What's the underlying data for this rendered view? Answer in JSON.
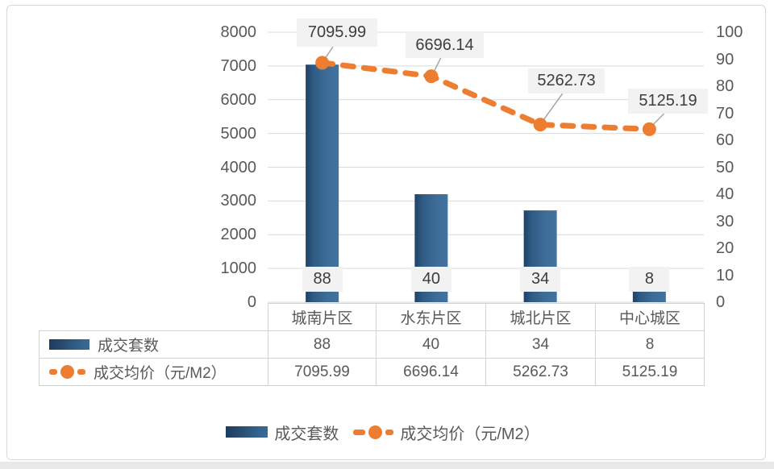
{
  "chart_data": {
    "type": "bar+line combo",
    "title": "",
    "categories": [
      "城南片区",
      "水东片区",
      "城北片区",
      "中心城区"
    ],
    "series": [
      {
        "name": "成交套数",
        "type": "bar",
        "axis": "right",
        "values": [
          88,
          40,
          34,
          8
        ],
        "data_labels": [
          "88",
          "40",
          "34",
          "8"
        ],
        "color": "#3a6b96"
      },
      {
        "name": "成交均价（元/M2）",
        "type": "line",
        "style": "dashed-with-round-markers",
        "axis": "left",
        "values": [
          7095.99,
          6696.14,
          5262.73,
          5125.19
        ],
        "data_labels": [
          "7095.99",
          "6696.14",
          "5262.73",
          "5125.19"
        ],
        "color": "#ed7d31"
      }
    ],
    "left_axis": {
      "min": 0,
      "max": 8000,
      "step": 1000,
      "ticks": [
        "0",
        "1000",
        "2000",
        "3000",
        "4000",
        "5000",
        "6000",
        "7000",
        "8000"
      ]
    },
    "right_axis": {
      "min": 0,
      "max": 100,
      "step": 10,
      "ticks": [
        "0",
        "10",
        "20",
        "30",
        "40",
        "50",
        "60",
        "70",
        "80",
        "90",
        "100"
      ]
    },
    "grid": "horizontal-on",
    "legend_position": "bottom"
  },
  "table": {
    "header_row": [
      "城南片区",
      "水东片区",
      "城北片区",
      "中心城区"
    ],
    "rows": [
      {
        "label": "成交套数",
        "key": "bar",
        "values": [
          "88",
          "40",
          "34",
          "8"
        ]
      },
      {
        "label": "成交均价（元/M2）",
        "key": "line",
        "values": [
          "7095.99",
          "6696.14",
          "5262.73",
          "5125.19"
        ]
      }
    ]
  },
  "legend": {
    "items": [
      {
        "label": "成交套数",
        "key": "bar"
      },
      {
        "label": "成交均价（元/M2）",
        "key": "line"
      }
    ]
  },
  "colors": {
    "bar_dark": "#1c3c5e",
    "bar_mid": "#35608a",
    "bar_light": "#41749f",
    "line_orange": "#ed7d31",
    "gridline": "#d9d9d9",
    "axis_text": "#595959",
    "label_box_bg": "#f2f2f2",
    "leader_line": "#a6a6a6",
    "frame_border": "#d8d8d8",
    "table_border": "#d2d2d2",
    "page_strip": "#e8e8e8"
  }
}
